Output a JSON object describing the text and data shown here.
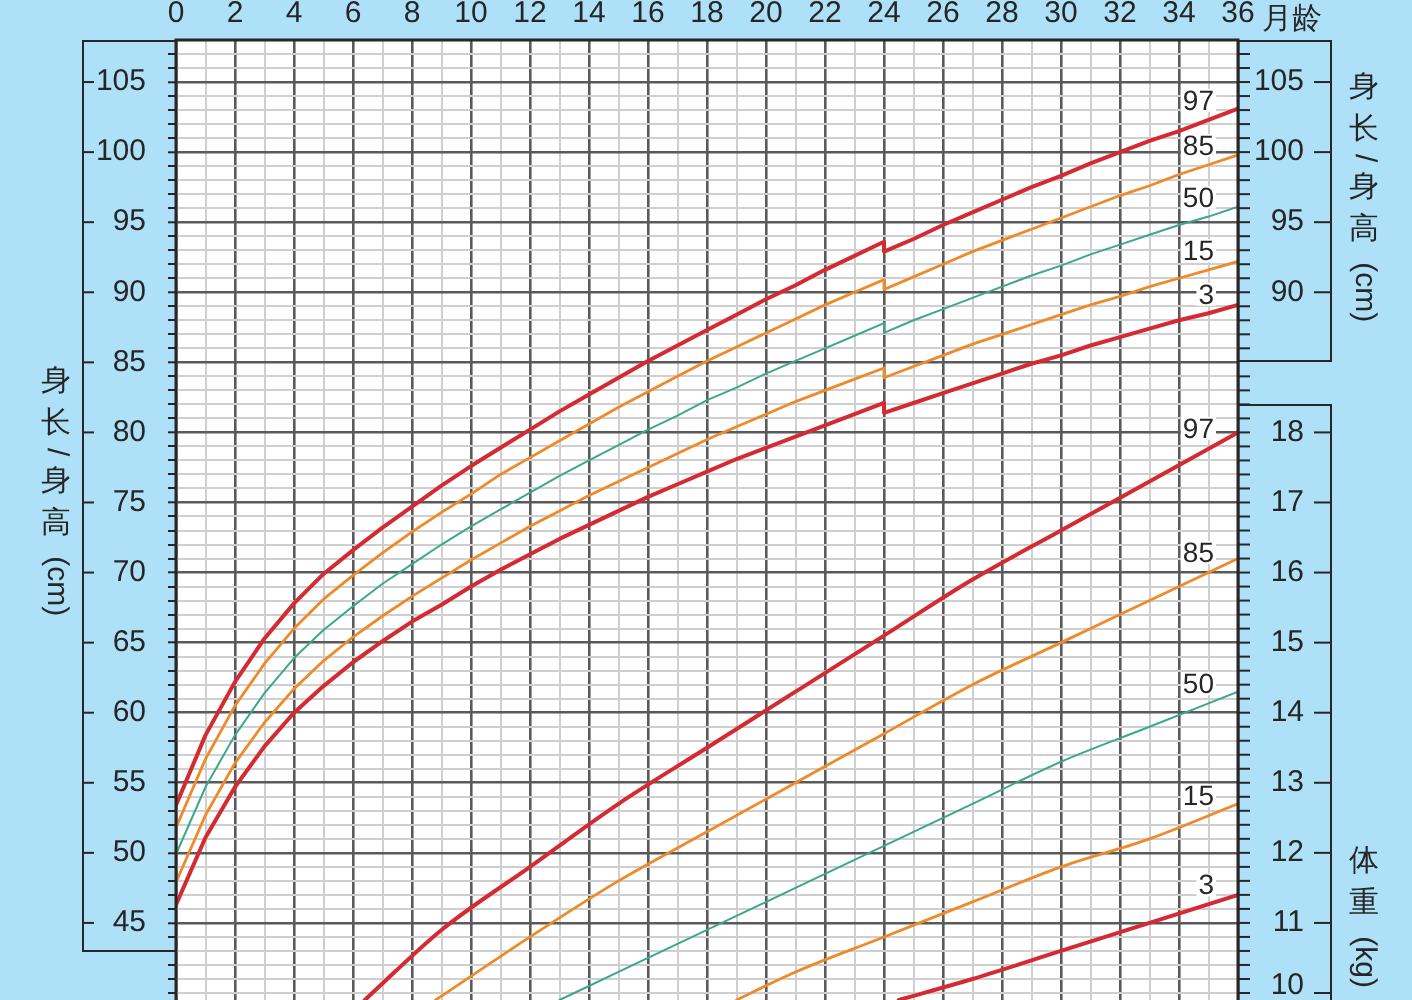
{
  "chart_data": {
    "type": "line",
    "xlabel": "月龄",
    "ylabel": "身长/身高 (cm)",
    "y2label": "身长/身高 (cm)",
    "y3label": "体重 (kg)",
    "grid": true,
    "xlim": [
      0,
      36
    ],
    "xticks": [
      0,
      {
        "value": 1,
        "label": null
      },
      2,
      {
        "value": 3,
        "label": null
      },
      4,
      {
        "value": 5,
        "label": null
      },
      6,
      {
        "value": 7,
        "label": null
      },
      8,
      {
        "value": 9,
        "label": null
      },
      10,
      {
        "value": 11,
        "label": null
      },
      12,
      {
        "value": 13,
        "label": null
      },
      14,
      {
        "value": 15,
        "label": null
      },
      16,
      {
        "value": 17,
        "label": null
      },
      18,
      {
        "value": 19,
        "label": null
      },
      20,
      {
        "value": 21,
        "label": null
      },
      22,
      {
        "value": 23,
        "label": null
      },
      24,
      {
        "value": 25,
        "label": null
      },
      26,
      {
        "value": 27,
        "label": null
      },
      28,
      {
        "value": 29,
        "label": null
      },
      30,
      {
        "value": 31,
        "label": null
      },
      32,
      {
        "value": 33,
        "label": null
      },
      34,
      {
        "value": 35,
        "label": null
      },
      36
    ],
    "ylim": [
      39.5,
      108
    ],
    "yticks": [
      {
        "value": 40,
        "label": null
      },
      {
        "value": 41,
        "label": null
      },
      {
        "value": 42,
        "label": null
      },
      {
        "value": 43,
        "label": null
      },
      {
        "value": 44,
        "label": null
      },
      45,
      {
        "value": 46,
        "label": null
      },
      {
        "value": 47,
        "label": null
      },
      {
        "value": 48,
        "label": null
      },
      {
        "value": 49,
        "label": null
      },
      50,
      {
        "value": 51,
        "label": null
      },
      {
        "value": 52,
        "label": null
      },
      {
        "value": 53,
        "label": null
      },
      {
        "value": 54,
        "label": null
      },
      55,
      {
        "value": 56,
        "label": null
      },
      {
        "value": 57,
        "label": null
      },
      {
        "value": 58,
        "label": null
      },
      {
        "value": 59,
        "label": null
      },
      60,
      {
        "value": 61,
        "label": null
      },
      {
        "value": 62,
        "label": null
      },
      {
        "value": 63,
        "label": null
      },
      {
        "value": 64,
        "label": null
      },
      65,
      {
        "value": 66,
        "label": null
      },
      {
        "value": 67,
        "label": null
      },
      {
        "value": 68,
        "label": null
      },
      {
        "value": 69,
        "label": null
      },
      70,
      {
        "value": 71,
        "label": null
      },
      {
        "value": 72,
        "label": null
      },
      {
        "value": 73,
        "label": null
      },
      {
        "value": 74,
        "label": null
      },
      75,
      {
        "value": 76,
        "label": null
      },
      {
        "value": 77,
        "label": null
      },
      {
        "value": 78,
        "label": null
      },
      {
        "value": 79,
        "label": null
      },
      80,
      {
        "value": 81,
        "label": null
      },
      {
        "value": 82,
        "label": null
      },
      {
        "value": 83,
        "label": null
      },
      {
        "value": 84,
        "label": null
      },
      85,
      {
        "value": 86,
        "label": null
      },
      {
        "value": 87,
        "label": null
      },
      {
        "value": 88,
        "label": null
      },
      {
        "value": 89,
        "label": null
      },
      90,
      {
        "value": 91,
        "label": null
      },
      {
        "value": 92,
        "label": null
      },
      {
        "value": 93,
        "label": null
      },
      {
        "value": 94,
        "label": null
      },
      95,
      {
        "value": 96,
        "label": null
      },
      {
        "value": 97,
        "label": null
      },
      {
        "value": 98,
        "label": null
      },
      {
        "value": 99,
        "label": null
      },
      100,
      {
        "value": 101,
        "label": null
      },
      {
        "value": 102,
        "label": null
      },
      {
        "value": 103,
        "label": null
      },
      {
        "value": 104,
        "label": null
      },
      105,
      {
        "value": 106,
        "label": null
      },
      {
        "value": 107,
        "label": null
      }
    ],
    "y2lim": [
      39.5,
      108
    ],
    "y2ticks": [
      {
        "value": 86,
        "label": null
      },
      {
        "value": 87,
        "label": null
      },
      {
        "value": 88,
        "label": null
      },
      {
        "value": 89,
        "label": null
      },
      90,
      {
        "value": 91,
        "label": null
      },
      {
        "value": 92,
        "label": null
      },
      {
        "value": 93,
        "label": null
      },
      {
        "value": 94,
        "label": null
      },
      95,
      {
        "value": 96,
        "label": null
      },
      {
        "value": 97,
        "label": null
      },
      {
        "value": 98,
        "label": null
      },
      {
        "value": 99,
        "label": null
      },
      100,
      {
        "value": 101,
        "label": null
      },
      {
        "value": 102,
        "label": null
      },
      {
        "value": 103,
        "label": null
      },
      {
        "value": 104,
        "label": null
      },
      105,
      {
        "value": 106,
        "label": null
      },
      {
        "value": 107,
        "label": null
      }
    ],
    "y3lim": [
      9.9,
      23.6
    ],
    "y3ticks": [
      10,
      {
        "value": 10.2,
        "label": null
      },
      {
        "value": 10.4,
        "label": null
      },
      {
        "value": 10.6,
        "label": null
      },
      {
        "value": 10.8,
        "label": null
      },
      11,
      {
        "value": 11.2,
        "label": null
      },
      {
        "value": 11.4,
        "label": null
      },
      {
        "value": 11.6,
        "label": null
      },
      {
        "value": 11.8,
        "label": null
      },
      12,
      {
        "value": 12.2,
        "label": null
      },
      {
        "value": 12.4,
        "label": null
      },
      {
        "value": 12.6,
        "label": null
      },
      {
        "value": 12.8,
        "label": null
      },
      13,
      {
        "value": 13.2,
        "label": null
      },
      {
        "value": 13.4,
        "label": null
      },
      {
        "value": 13.6,
        "label": null
      },
      {
        "value": 13.8,
        "label": null
      },
      14,
      {
        "value": 14.2,
        "label": null
      },
      {
        "value": 14.4,
        "label": null
      },
      {
        "value": 14.6,
        "label": null
      },
      {
        "value": 14.8,
        "label": null
      },
      15,
      {
        "value": 15.2,
        "label": null
      },
      {
        "value": 15.4,
        "label": null
      },
      {
        "value": 15.6,
        "label": null
      },
      {
        "value": 15.8,
        "label": null
      },
      16,
      {
        "value": 16.2,
        "label": null
      },
      {
        "value": 16.4,
        "label": null
      },
      {
        "value": 16.6,
        "label": null
      },
      {
        "value": 16.8,
        "label": null
      },
      17,
      {
        "value": 17.2,
        "label": null
      },
      {
        "value": 17.4,
        "label": null
      },
      {
        "value": 17.6,
        "label": null
      },
      {
        "value": 17.8,
        "label": null
      },
      18,
      {
        "value": 18.2,
        "label": null
      },
      {
        "value": 18.4,
        "label": null
      },
      {
        "value": 18.6,
        "label": null
      },
      {
        "value": 18.8,
        "label": null
      }
    ],
    "x": [
      0,
      1,
      2,
      3,
      4,
      5,
      6,
      7,
      8,
      9,
      10,
      11,
      12,
      13,
      14,
      15,
      16,
      17,
      18,
      19,
      20,
      21,
      22,
      23,
      24,
      24,
      25,
      26,
      27,
      28,
      29,
      30,
      31,
      32,
      33,
      34,
      35,
      36
    ],
    "series": [
      {
        "name": "97",
        "color": "#d42a32",
        "values": [
          53.4,
          58.4,
          62.2,
          65.3,
          67.8,
          69.9,
          71.6,
          73.2,
          74.7,
          76.2,
          77.6,
          78.9,
          80.2,
          81.5,
          82.7,
          83.9,
          85.1,
          86.2,
          87.3,
          88.4,
          89.5,
          90.5,
          91.6,
          92.6,
          93.6,
          92.9,
          93.8,
          94.8,
          95.7,
          96.6,
          97.5,
          98.3,
          99.2,
          100.0,
          100.8,
          101.5,
          102.3,
          103.1
        ]
      },
      {
        "name": "85",
        "color": "#ef8a2a",
        "values": [
          51.8,
          56.7,
          60.5,
          63.5,
          66.0,
          68.1,
          69.8,
          71.4,
          72.9,
          74.3,
          75.6,
          77.0,
          78.2,
          79.4,
          80.6,
          81.8,
          82.9,
          84.0,
          85.1,
          86.1,
          87.1,
          88.1,
          89.1,
          90.0,
          90.9,
          90.2,
          91.1,
          92.0,
          92.9,
          93.7,
          94.5,
          95.3,
          96.1,
          96.9,
          97.6,
          98.4,
          99.1,
          99.8
        ]
      },
      {
        "name": "50",
        "color": "#3aa88c",
        "values": [
          49.9,
          54.7,
          58.4,
          61.4,
          63.9,
          65.9,
          67.6,
          69.2,
          70.6,
          72.0,
          73.3,
          74.5,
          75.7,
          76.9,
          78.0,
          79.1,
          80.2,
          81.2,
          82.3,
          83.2,
          84.2,
          85.1,
          86.0,
          86.9,
          87.8,
          87.1,
          88.0,
          88.8,
          89.6,
          90.4,
          91.2,
          91.9,
          92.7,
          93.4,
          94.1,
          94.8,
          95.4,
          96.1
        ]
      },
      {
        "name": "15",
        "color": "#ef8a2a",
        "values": [
          47.9,
          52.7,
          56.4,
          59.3,
          61.7,
          63.7,
          65.4,
          66.9,
          68.3,
          69.6,
          70.9,
          72.1,
          73.3,
          74.4,
          75.5,
          76.5,
          77.5,
          78.5,
          79.5,
          80.4,
          81.3,
          82.2,
          83.0,
          83.8,
          84.6,
          83.9,
          84.7,
          85.5,
          86.3,
          87.0,
          87.7,
          88.4,
          89.1,
          89.7,
          90.4,
          91.0,
          91.6,
          92.2
        ]
      },
      {
        "name": "3",
        "color": "#d42a32",
        "values": [
          46.3,
          51.1,
          54.7,
          57.6,
          60.0,
          61.9,
          63.6,
          65.1,
          66.5,
          67.7,
          69.0,
          70.2,
          71.3,
          72.4,
          73.4,
          74.4,
          75.4,
          76.3,
          77.2,
          78.1,
          78.9,
          79.7,
          80.5,
          81.3,
          82.1,
          81.4,
          82.1,
          82.8,
          83.5,
          84.2,
          84.9,
          85.5,
          86.2,
          86.8,
          87.4,
          88.0,
          88.5,
          89.1
        ]
      },
      {
        "name": "97",
        "color": "#d42a32",
        "axis": "y3",
        "x": [
          6.4,
          9,
          12,
          15,
          18,
          21,
          24,
          27,
          30,
          33,
          36
        ],
        "values": [
          9.9,
          10.9,
          11.8,
          12.7,
          13.5,
          14.3,
          15.1,
          15.9,
          16.6,
          17.3,
          18.0
        ]
      },
      {
        "name": "85",
        "color": "#ef8a2a",
        "axis": "y3",
        "x": [
          8.8,
          12,
          15,
          18,
          21,
          24,
          27,
          30,
          33,
          36
        ],
        "values": [
          9.9,
          10.8,
          11.6,
          12.3,
          13.0,
          13.7,
          14.4,
          15.0,
          15.6,
          16.2
        ]
      },
      {
        "name": "50",
        "color": "#3aa88c",
        "axis": "y3",
        "x": [
          13,
          15,
          18,
          21,
          24,
          27,
          30,
          33,
          36
        ],
        "values": [
          9.9,
          10.3,
          10.9,
          11.5,
          12.1,
          12.7,
          13.3,
          13.8,
          14.3
        ]
      },
      {
        "name": "15",
        "color": "#ef8a2a",
        "axis": "y3",
        "x": [
          19,
          21,
          24,
          27,
          30,
          33,
          36
        ],
        "values": [
          9.9,
          10.3,
          10.8,
          11.3,
          11.8,
          12.2,
          12.7
        ]
      },
      {
        "name": "3",
        "color": "#d42a32",
        "axis": "y3",
        "x": [
          24.5,
          27,
          30,
          33,
          36
        ],
        "values": [
          9.9,
          10.2,
          10.6,
          11.0,
          11.4
        ]
      }
    ]
  }
}
